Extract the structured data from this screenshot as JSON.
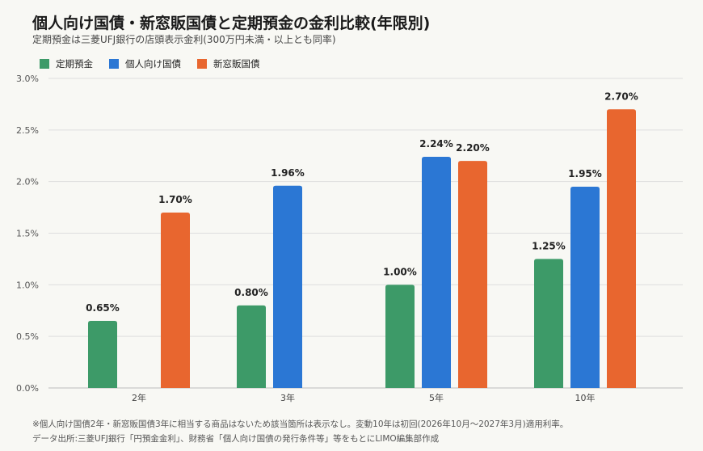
{
  "title": "個人向け国債・新窓販国債と定期預金の金利比較(年限別)",
  "subtitle": "定期預金は三菱UFJ銀行の店頭表示金利(300万円未満・以上とも同率)",
  "notes": [
    "※個人向け国債2年・新窓販国債3年に相当する商品はないため該当箇所は表示なし。変動10年は初回(2026年10月～2027年3月)適用利率。",
    "データ出所:三菱UFJ銀行「円預金金利」、財務省「個人向け国債の発行条件等」等をもとにLIMO編集部作成"
  ],
  "chart_data": {
    "type": "bar",
    "categories": [
      "2年",
      "3年",
      "5年",
      "10年"
    ],
    "series": [
      {
        "name": "定期預金",
        "color": "#3d9a68",
        "values": [
          0.65,
          0.8,
          1.0,
          1.25
        ],
        "labels": [
          "0.65%",
          "0.80%",
          "1.00%",
          "1.25%"
        ]
      },
      {
        "name": "個人向け国債",
        "color": "#2b77d4",
        "values": [
          null,
          1.96,
          2.24,
          1.95
        ],
        "labels": [
          "",
          "1.96%",
          "2.24%",
          "1.95%"
        ]
      },
      {
        "name": "新窓販国債",
        "color": "#e8662f",
        "values": [
          1.7,
          null,
          2.2,
          2.7
        ],
        "labels": [
          "1.70%",
          "",
          "2.20%",
          "2.70%"
        ]
      }
    ],
    "ylim": [
      0,
      3.0
    ],
    "yticks": [
      0,
      0.5,
      1.0,
      1.5,
      2.0,
      2.5,
      3.0
    ],
    "ytick_labels": [
      "0.0%",
      "0.5%",
      "1.0%",
      "1.5%",
      "2.0%",
      "2.5%",
      "3.0%"
    ],
    "grid": true,
    "legend_position": "top-left"
  }
}
